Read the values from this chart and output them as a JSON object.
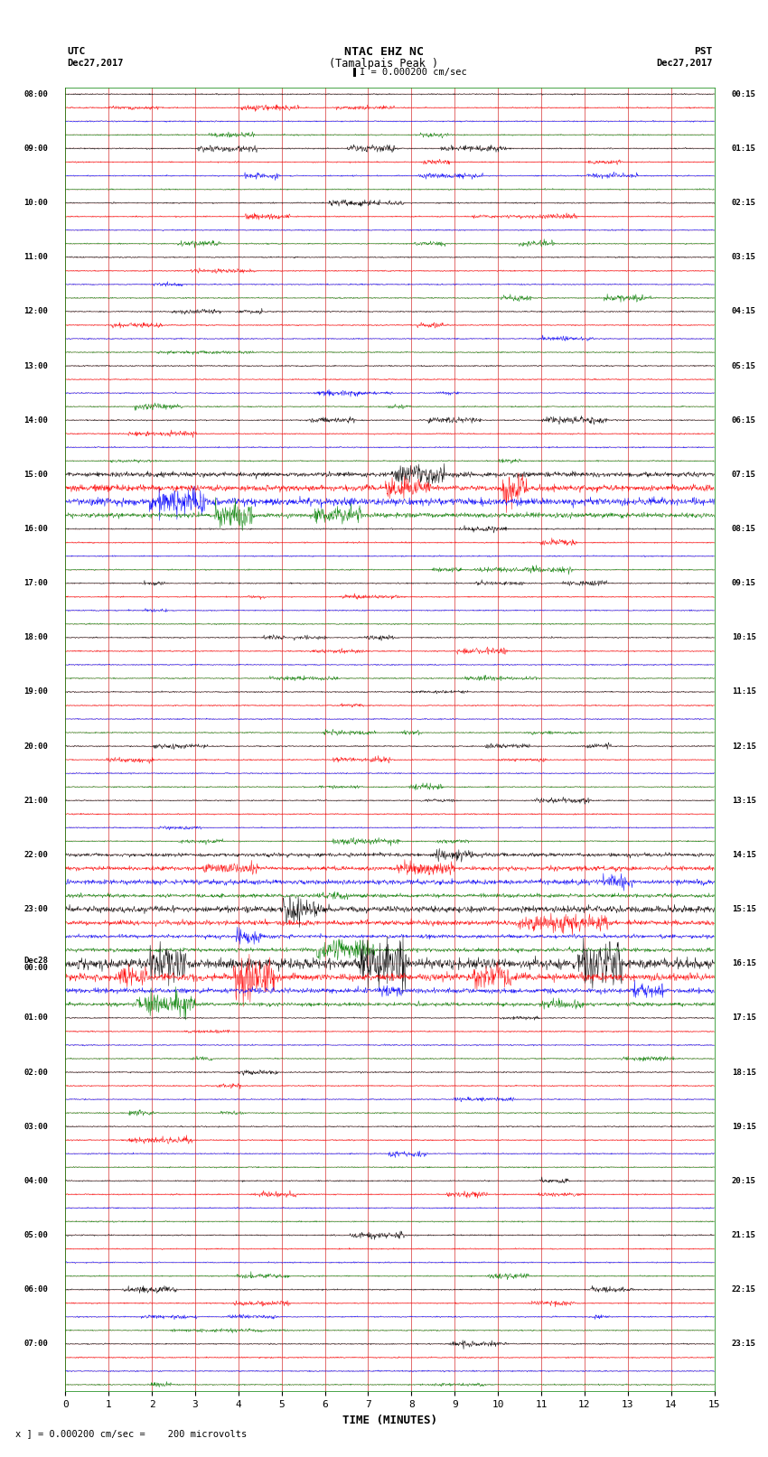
{
  "title_line1": "NTAC EHZ NC",
  "title_line2": "(Tamalpais Peak )",
  "title_line3": "I = 0.000200 cm/sec",
  "left_header_line1": "UTC",
  "left_header_line2": "Dec27,2017",
  "right_header_line1": "PST",
  "right_header_line2": "Dec27,2017",
  "xlabel": "TIME (MINUTES)",
  "footer": "x ] = 0.000200 cm/sec =    200 microvolts",
  "utc_times": [
    "08:00",
    "",
    "",
    "",
    "09:00",
    "",
    "",
    "",
    "10:00",
    "",
    "",
    "",
    "11:00",
    "",
    "",
    "",
    "12:00",
    "",
    "",
    "",
    "13:00",
    "",
    "",
    "",
    "14:00",
    "",
    "",
    "",
    "15:00",
    "",
    "",
    "",
    "16:00",
    "",
    "",
    "",
    "17:00",
    "",
    "",
    "",
    "18:00",
    "",
    "",
    "",
    "19:00",
    "",
    "",
    "",
    "20:00",
    "",
    "",
    "",
    "21:00",
    "",
    "",
    "",
    "22:00",
    "",
    "",
    "",
    "23:00",
    "",
    "",
    "",
    "Dec28\n00:00",
    "",
    "",
    "",
    "01:00",
    "",
    "",
    "",
    "02:00",
    "",
    "",
    "",
    "03:00",
    "",
    "",
    "",
    "04:00",
    "",
    "",
    "",
    "05:00",
    "",
    "",
    "",
    "06:00",
    "",
    "",
    "",
    "07:00"
  ],
  "pst_times": [
    "00:15",
    "",
    "",
    "",
    "01:15",
    "",
    "",
    "",
    "02:15",
    "",
    "",
    "",
    "03:15",
    "",
    "",
    "",
    "04:15",
    "",
    "",
    "",
    "05:15",
    "",
    "",
    "",
    "06:15",
    "",
    "",
    "",
    "07:15",
    "",
    "",
    "",
    "08:15",
    "",
    "",
    "",
    "09:15",
    "",
    "",
    "",
    "10:15",
    "",
    "",
    "",
    "11:15",
    "",
    "",
    "",
    "12:15",
    "",
    "",
    "",
    "13:15",
    "",
    "",
    "",
    "14:15",
    "",
    "",
    "",
    "15:15",
    "",
    "",
    "",
    "16:15",
    "",
    "",
    "",
    "17:15",
    "",
    "",
    "",
    "18:15",
    "",
    "",
    "",
    "19:15",
    "",
    "",
    "",
    "20:15",
    "",
    "",
    "",
    "21:15",
    "",
    "",
    "",
    "22:15",
    "",
    "",
    "",
    "23:15"
  ],
  "trace_colors": [
    "black",
    "red",
    "blue",
    "green"
  ],
  "n_rows": 96,
  "x_min": 0,
  "x_max": 15,
  "x_ticks": [
    0,
    1,
    2,
    3,
    4,
    5,
    6,
    7,
    8,
    9,
    10,
    11,
    12,
    13,
    14,
    15
  ],
  "bg_color": "white",
  "grid_color": "#cc0000",
  "noise_seed": 42,
  "noise_scale": 0.03,
  "figwidth": 8.5,
  "figheight": 16.13,
  "dpi": 100
}
